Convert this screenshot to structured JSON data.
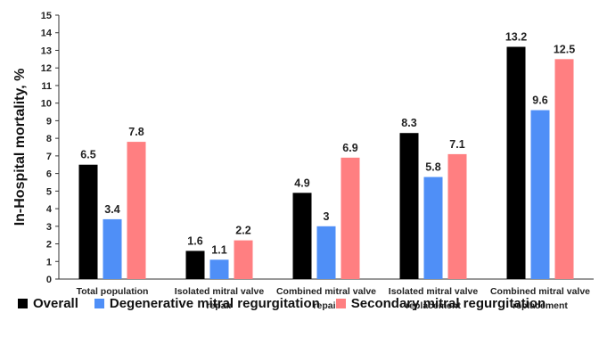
{
  "chart_data": {
    "type": "bar",
    "ylabel": "In-Hospital mortality, %",
    "ylim": [
      0,
      15
    ],
    "yticks": [
      0,
      1,
      2,
      3,
      4,
      5,
      6,
      7,
      8,
      9,
      10,
      11,
      12,
      13,
      14,
      15
    ],
    "categories": [
      [
        "Total population"
      ],
      [
        "Isolated mitral valve",
        "repair"
      ],
      [
        "Combined mitral valve",
        "repair"
      ],
      [
        "Isolated mitral valve",
        "replacement"
      ],
      [
        "Combined mitral valve",
        "replacement"
      ]
    ],
    "series": [
      {
        "name": "Overall",
        "color": "#000000",
        "values": [
          6.5,
          1.6,
          4.9,
          8.3,
          13.2
        ]
      },
      {
        "name": "Degenerative mitral regurgitation",
        "color": "#4f8ff7",
        "values": [
          3.4,
          1.1,
          3,
          5.8,
          9.6
        ]
      },
      {
        "name": "Secondary mitral regurgitation",
        "color": "#ff7f81",
        "values": [
          7.8,
          2.2,
          6.9,
          7.1,
          12.5
        ]
      }
    ],
    "legend_position": "bottom",
    "grid": false
  }
}
